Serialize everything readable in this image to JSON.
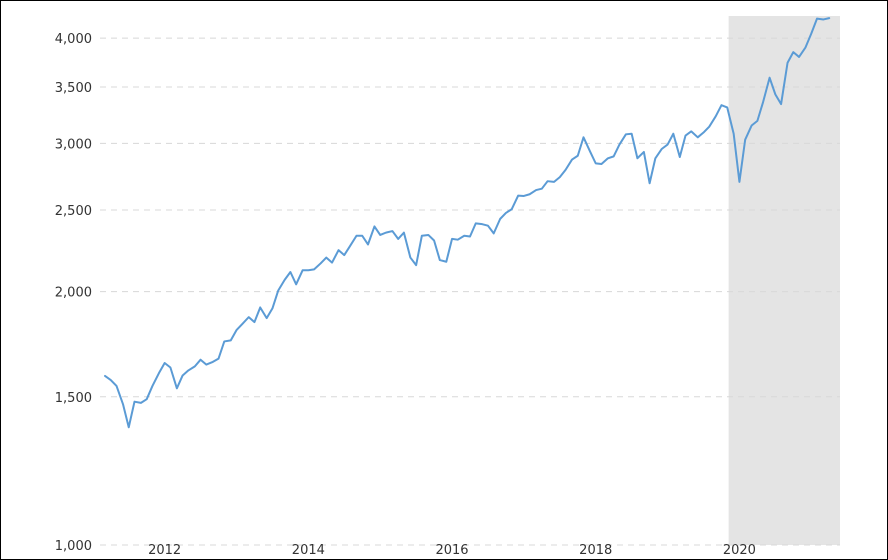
{
  "chart_data": {
    "type": "line",
    "title": "",
    "xlabel": "",
    "ylabel": "",
    "y_scale": "log",
    "ylim": [
      1000,
      4250
    ],
    "xlim": [
      2011.1,
      2021.4
    ],
    "y_ticks": [
      {
        "value": 1000,
        "label": "1,000"
      },
      {
        "value": 1500,
        "label": "1,500"
      },
      {
        "value": 2000,
        "label": "2,000"
      },
      {
        "value": 2500,
        "label": "2,500"
      },
      {
        "value": 3000,
        "label": "3,000"
      },
      {
        "value": 3500,
        "label": "3,500"
      },
      {
        "value": 4000,
        "label": "4,000"
      }
    ],
    "x_ticks": [
      {
        "value": 2012,
        "label": "2012"
      },
      {
        "value": 2014,
        "label": "2014"
      },
      {
        "value": 2016,
        "label": "2016"
      },
      {
        "value": 2018,
        "label": "2018"
      },
      {
        "value": 2020,
        "label": "2020"
      }
    ],
    "grid": "horizontal dashed",
    "shaded_region": {
      "x_start": 2019.85,
      "x_end": 2021.4,
      "color": "#e4e4e4"
    },
    "series": [
      {
        "color": "#5b9bd5",
        "points": [
          [
            2011.17,
            1588
          ],
          [
            2011.25,
            1570
          ],
          [
            2011.33,
            1545
          ],
          [
            2011.42,
            1470
          ],
          [
            2011.5,
            1380
          ],
          [
            2011.58,
            1480
          ],
          [
            2011.67,
            1475
          ],
          [
            2011.75,
            1490
          ],
          [
            2011.83,
            1545
          ],
          [
            2011.92,
            1600
          ],
          [
            2012.0,
            1645
          ],
          [
            2012.08,
            1625
          ],
          [
            2012.17,
            1535
          ],
          [
            2012.25,
            1590
          ],
          [
            2012.33,
            1612
          ],
          [
            2012.42,
            1630
          ],
          [
            2012.5,
            1660
          ],
          [
            2012.58,
            1638
          ],
          [
            2012.67,
            1650
          ],
          [
            2012.75,
            1665
          ],
          [
            2012.83,
            1745
          ],
          [
            2012.92,
            1750
          ],
          [
            2013.0,
            1800
          ],
          [
            2013.08,
            1830
          ],
          [
            2013.17,
            1865
          ],
          [
            2013.25,
            1840
          ],
          [
            2013.33,
            1915
          ],
          [
            2013.42,
            1860
          ],
          [
            2013.5,
            1910
          ],
          [
            2013.58,
            2005
          ],
          [
            2013.67,
            2065
          ],
          [
            2013.75,
            2110
          ],
          [
            2013.83,
            2040
          ],
          [
            2013.92,
            2120
          ],
          [
            2014.0,
            2120
          ],
          [
            2014.08,
            2125
          ],
          [
            2014.17,
            2160
          ],
          [
            2014.25,
            2195
          ],
          [
            2014.33,
            2165
          ],
          [
            2014.42,
            2240
          ],
          [
            2014.5,
            2210
          ],
          [
            2014.58,
            2265
          ],
          [
            2014.67,
            2330
          ],
          [
            2014.75,
            2330
          ],
          [
            2014.83,
            2275
          ],
          [
            2014.92,
            2390
          ],
          [
            2015.0,
            2335
          ],
          [
            2015.08,
            2350
          ],
          [
            2015.17,
            2360
          ],
          [
            2015.25,
            2310
          ],
          [
            2015.33,
            2350
          ],
          [
            2015.42,
            2195
          ],
          [
            2015.5,
            2150
          ],
          [
            2015.58,
            2330
          ],
          [
            2015.67,
            2335
          ],
          [
            2015.75,
            2300
          ],
          [
            2015.83,
            2180
          ],
          [
            2015.92,
            2170
          ],
          [
            2016.0,
            2310
          ],
          [
            2016.08,
            2305
          ],
          [
            2016.17,
            2330
          ],
          [
            2016.25,
            2325
          ],
          [
            2016.33,
            2410
          ],
          [
            2016.42,
            2405
          ],
          [
            2016.5,
            2395
          ],
          [
            2016.58,
            2345
          ],
          [
            2016.67,
            2440
          ],
          [
            2016.75,
            2480
          ],
          [
            2016.83,
            2505
          ],
          [
            2016.92,
            2600
          ],
          [
            2017.0,
            2598
          ],
          [
            2017.08,
            2610
          ],
          [
            2017.17,
            2640
          ],
          [
            2017.25,
            2650
          ],
          [
            2017.33,
            2705
          ],
          [
            2017.42,
            2700
          ],
          [
            2017.5,
            2735
          ],
          [
            2017.58,
            2790
          ],
          [
            2017.67,
            2870
          ],
          [
            2017.75,
            2900
          ],
          [
            2017.83,
            3050
          ],
          [
            2017.92,
            2935
          ],
          [
            2018.0,
            2840
          ],
          [
            2018.08,
            2835
          ],
          [
            2018.17,
            2880
          ],
          [
            2018.25,
            2895
          ],
          [
            2018.33,
            2990
          ],
          [
            2018.42,
            3075
          ],
          [
            2018.5,
            3080
          ],
          [
            2018.58,
            2880
          ],
          [
            2018.67,
            2930
          ],
          [
            2018.75,
            2690
          ],
          [
            2018.83,
            2880
          ],
          [
            2018.92,
            2955
          ],
          [
            2019.0,
            2990
          ],
          [
            2019.08,
            3080
          ],
          [
            2019.17,
            2890
          ],
          [
            2019.25,
            3065
          ],
          [
            2019.33,
            3100
          ],
          [
            2019.42,
            3050
          ],
          [
            2019.5,
            3090
          ],
          [
            2019.58,
            3140
          ],
          [
            2019.67,
            3230
          ],
          [
            2019.75,
            3330
          ],
          [
            2019.83,
            3310
          ],
          [
            2019.92,
            3080
          ],
          [
            2020.0,
            2700
          ],
          [
            2020.08,
            3030
          ],
          [
            2020.17,
            3150
          ],
          [
            2020.25,
            3190
          ],
          [
            2020.33,
            3360
          ],
          [
            2020.42,
            3590
          ],
          [
            2020.5,
            3430
          ],
          [
            2020.58,
            3340
          ],
          [
            2020.67,
            3740
          ],
          [
            2020.75,
            3850
          ],
          [
            2020.83,
            3800
          ],
          [
            2020.92,
            3900
          ],
          [
            2021.0,
            4050
          ],
          [
            2021.08,
            4220
          ],
          [
            2021.17,
            4210
          ],
          [
            2021.25,
            4225
          ]
        ]
      }
    ]
  }
}
